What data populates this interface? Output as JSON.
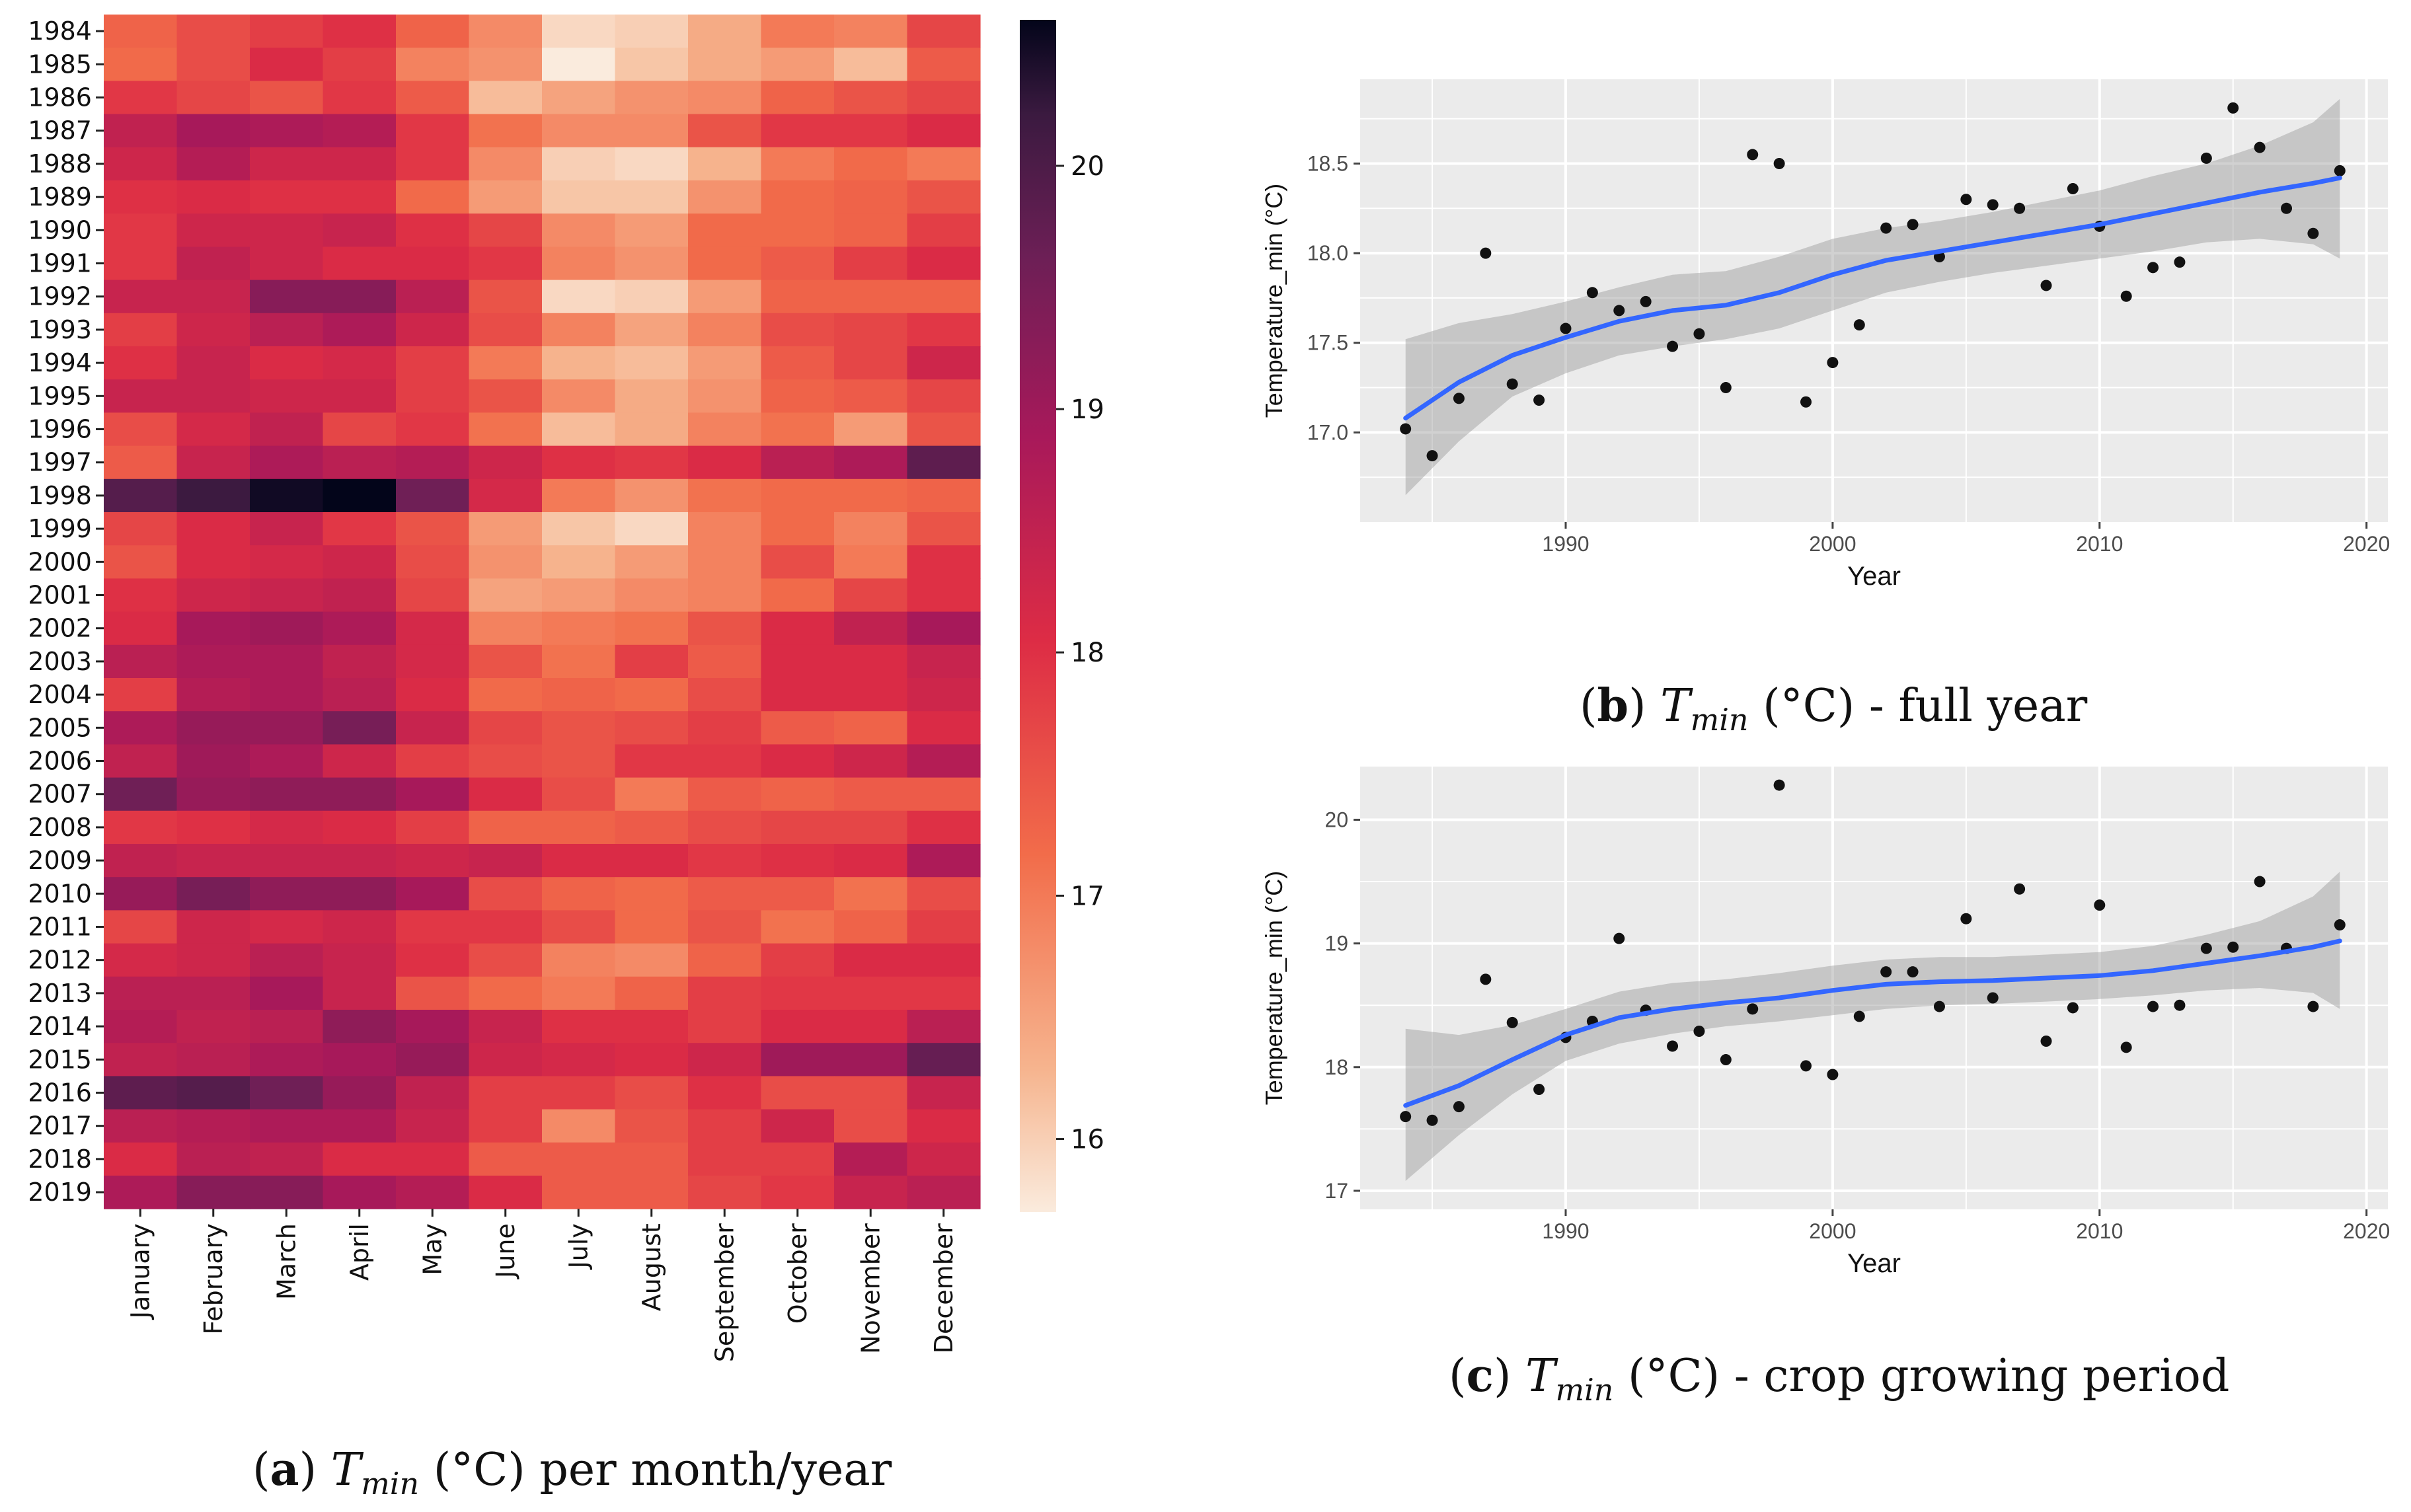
{
  "panels": {
    "a": {
      "caption": {
        "letter": "a",
        "symbol": "T",
        "subscript": "min",
        "rest": " (°C) per month/year"
      }
    },
    "b": {
      "caption": {
        "letter": "b",
        "symbol": "T",
        "subscript": "min",
        "rest": " (°C) - full year"
      }
    },
    "c": {
      "caption": {
        "letter": "c",
        "symbol": "T",
        "subscript": "min",
        "rest": " (°C) - crop growing period"
      }
    }
  },
  "colors": {
    "panel_bg": "#ebebeb",
    "grid": "#ffffff",
    "smooth_line": "#3366ff",
    "ribbon": "#bdbdbd",
    "point": "#111111"
  },
  "chart_data": [
    {
      "type": "heatmap",
      "title": "",
      "xlabel": "",
      "ylabel": "",
      "columns": [
        "January",
        "February",
        "March",
        "April",
        "May",
        "June",
        "July",
        "August",
        "September",
        "October",
        "November",
        "December"
      ],
      "rows": [
        "1984",
        "1985",
        "1986",
        "1987",
        "1988",
        "1989",
        "1990",
        "1991",
        "1992",
        "1993",
        "1994",
        "1995",
        "1996",
        "1997",
        "1998",
        "1999",
        "2000",
        "2001",
        "2002",
        "2003",
        "2004",
        "2005",
        "2006",
        "2007",
        "2008",
        "2009",
        "2010",
        "2011",
        "2012",
        "2013",
        "2014",
        "2015",
        "2016",
        "2017",
        "2018",
        "2019"
      ],
      "values": [
        [
          17.3,
          17.6,
          17.8,
          18.0,
          17.3,
          16.8,
          15.9,
          16.0,
          16.4,
          17.0,
          16.9,
          17.7
        ],
        [
          17.2,
          17.6,
          18.1,
          17.8,
          16.9,
          16.7,
          15.7,
          16.1,
          16.4,
          16.6,
          16.2,
          17.4
        ],
        [
          17.9,
          17.7,
          17.5,
          17.9,
          17.4,
          16.2,
          16.5,
          16.7,
          16.8,
          17.3,
          17.5,
          17.7
        ],
        [
          18.5,
          18.9,
          18.8,
          18.7,
          17.9,
          17.1,
          16.8,
          16.8,
          17.5,
          17.9,
          17.9,
          18.1
        ],
        [
          18.3,
          18.7,
          18.3,
          18.3,
          17.9,
          16.8,
          16.0,
          15.9,
          16.3,
          17.0,
          17.2,
          17.0
        ],
        [
          18.0,
          18.1,
          18.0,
          18.0,
          17.2,
          16.6,
          16.1,
          16.1,
          16.7,
          17.2,
          17.3,
          17.5
        ],
        [
          17.9,
          18.3,
          18.3,
          18.4,
          18.0,
          17.7,
          16.8,
          16.6,
          17.2,
          17.2,
          17.3,
          17.8
        ],
        [
          17.9,
          18.5,
          18.3,
          18.1,
          18.1,
          17.9,
          16.9,
          16.7,
          17.2,
          17.4,
          17.8,
          18.1
        ],
        [
          18.4,
          18.4,
          19.3,
          19.3,
          18.6,
          17.5,
          15.9,
          16.0,
          16.6,
          17.3,
          17.3,
          17.3
        ],
        [
          17.8,
          18.3,
          18.6,
          18.8,
          18.3,
          17.6,
          16.9,
          16.5,
          16.9,
          17.6,
          17.7,
          17.9
        ],
        [
          18.0,
          18.4,
          18.1,
          18.2,
          17.8,
          17.0,
          16.3,
          16.2,
          16.6,
          17.4,
          17.7,
          18.3
        ],
        [
          18.4,
          18.4,
          18.3,
          18.3,
          17.8,
          17.5,
          16.8,
          16.4,
          16.7,
          17.3,
          17.4,
          17.7
        ],
        [
          17.6,
          18.2,
          18.5,
          17.7,
          17.9,
          17.1,
          16.2,
          16.4,
          16.9,
          17.1,
          16.6,
          17.5
        ],
        [
          17.4,
          18.4,
          18.8,
          18.6,
          18.7,
          18.3,
          18.0,
          17.9,
          18.1,
          18.6,
          18.8,
          19.8
        ],
        [
          19.9,
          20.2,
          20.5,
          20.6,
          19.6,
          18.2,
          17.0,
          16.7,
          17.1,
          17.2,
          17.2,
          17.3
        ],
        [
          17.7,
          18.1,
          18.4,
          17.9,
          17.5,
          16.6,
          16.1,
          15.9,
          16.9,
          17.2,
          16.9,
          17.5
        ],
        [
          17.5,
          18.1,
          18.2,
          18.3,
          17.6,
          16.7,
          16.3,
          16.6,
          16.9,
          17.6,
          17.0,
          18.0
        ],
        [
          18.0,
          18.3,
          18.4,
          18.5,
          17.7,
          16.5,
          16.6,
          16.8,
          16.9,
          17.2,
          17.7,
          18.0
        ],
        [
          18.1,
          18.9,
          19.0,
          18.8,
          18.2,
          16.9,
          17.0,
          17.1,
          17.5,
          18.1,
          18.5,
          18.9
        ],
        [
          18.6,
          18.8,
          18.8,
          18.5,
          18.2,
          17.5,
          17.1,
          17.8,
          17.4,
          18.1,
          18.1,
          18.4
        ],
        [
          17.8,
          18.7,
          18.8,
          18.6,
          18.1,
          17.2,
          17.3,
          17.2,
          17.6,
          18.1,
          18.1,
          18.3
        ],
        [
          18.8,
          19.1,
          19.1,
          19.5,
          18.4,
          17.7,
          17.5,
          17.6,
          17.8,
          17.4,
          17.3,
          18.1
        ],
        [
          18.5,
          19.0,
          18.8,
          18.3,
          17.8,
          17.6,
          17.5,
          17.9,
          17.9,
          18.1,
          18.3,
          18.7
        ],
        [
          19.6,
          19.1,
          19.2,
          19.2,
          18.9,
          18.1,
          17.6,
          17.0,
          17.4,
          17.3,
          17.4,
          17.4
        ],
        [
          17.9,
          18.0,
          18.2,
          18.1,
          17.8,
          17.3,
          17.3,
          17.4,
          17.6,
          17.7,
          17.7,
          18.0
        ],
        [
          18.5,
          18.4,
          18.4,
          18.4,
          18.3,
          18.4,
          18.1,
          18.1,
          17.9,
          18.0,
          18.1,
          18.8
        ],
        [
          19.1,
          19.5,
          19.2,
          19.2,
          18.9,
          17.6,
          17.3,
          17.2,
          17.4,
          17.4,
          17.1,
          17.6
        ],
        [
          17.7,
          18.3,
          18.2,
          18.3,
          17.9,
          17.9,
          17.6,
          17.2,
          17.5,
          17.1,
          17.3,
          17.8
        ],
        [
          18.2,
          18.3,
          18.6,
          18.4,
          18.0,
          17.6,
          16.9,
          16.8,
          17.3,
          17.8,
          18.1,
          18.1
        ],
        [
          18.6,
          18.6,
          18.9,
          18.4,
          17.5,
          17.2,
          17.0,
          17.3,
          17.8,
          17.9,
          17.9,
          17.9
        ],
        [
          18.7,
          18.5,
          18.6,
          19.2,
          18.9,
          18.4,
          18.0,
          18.0,
          17.8,
          18.1,
          18.1,
          18.6
        ],
        [
          18.5,
          18.6,
          18.8,
          18.9,
          19.1,
          18.3,
          18.2,
          18.1,
          18.3,
          19.0,
          19.0,
          19.7
        ],
        [
          19.8,
          19.9,
          19.6,
          19.1,
          18.5,
          17.8,
          17.8,
          17.6,
          18.0,
          17.6,
          17.6,
          18.4
        ],
        [
          18.6,
          18.7,
          18.8,
          18.8,
          18.4,
          17.8,
          16.8,
          17.5,
          17.8,
          18.3,
          17.6,
          18.1
        ],
        [
          18.1,
          18.6,
          18.5,
          18.1,
          18.1,
          17.4,
          17.4,
          17.4,
          17.8,
          17.8,
          18.7,
          18.3
        ],
        [
          18.8,
          19.3,
          19.3,
          18.9,
          18.7,
          18.1,
          17.4,
          17.4,
          17.7,
          17.9,
          18.4,
          18.6
        ]
      ],
      "colorbar": {
        "ticks": [
          16,
          17,
          18,
          19,
          20
        ],
        "range": [
          15.7,
          20.6
        ]
      }
    },
    {
      "type": "scatter",
      "title": "",
      "xlabel": "Year",
      "ylabel": "Temperature_min (°C)",
      "xlim": [
        1982.3,
        2020.8
      ],
      "ylim": [
        16.5,
        18.97
      ],
      "xticks": [
        1990,
        2000,
        2010,
        2020
      ],
      "yticks": [
        17.0,
        17.5,
        18.0,
        18.5
      ],
      "ytick_labels": [
        "17.0",
        "17.5",
        "18.0",
        "18.5"
      ],
      "grid": true,
      "x": [
        1984,
        1985,
        1986,
        1987,
        1988,
        1989,
        1990,
        1991,
        1992,
        1993,
        1994,
        1995,
        1996,
        1997,
        1998,
        1999,
        2000,
        2001,
        2002,
        2003,
        2004,
        2005,
        2006,
        2007,
        2008,
        2009,
        2010,
        2011,
        2012,
        2013,
        2014,
        2015,
        2016,
        2017,
        2018,
        2019
      ],
      "y": [
        17.02,
        16.87,
        17.19,
        18.0,
        17.27,
        17.18,
        17.58,
        17.78,
        17.68,
        17.73,
        17.48,
        17.55,
        17.25,
        18.55,
        18.5,
        17.17,
        17.39,
        17.6,
        18.14,
        18.16,
        17.98,
        18.3,
        18.27,
        18.25,
        17.82,
        18.36,
        18.15,
        17.76,
        17.92,
        17.95,
        18.53,
        18.81,
        18.59,
        18.25,
        18.11,
        18.46
      ],
      "smooth": {
        "x": [
          1984,
          1986,
          1988,
          1990,
          1992,
          1994,
          1996,
          1998,
          2000,
          2002,
          2004,
          2006,
          2008,
          2010,
          2012,
          2014,
          2016,
          2018,
          2019
        ],
        "y": [
          17.08,
          17.28,
          17.43,
          17.53,
          17.62,
          17.68,
          17.71,
          17.78,
          17.88,
          17.96,
          18.01,
          18.06,
          18.11,
          18.16,
          18.22,
          18.28,
          18.34,
          18.39,
          18.42
        ],
        "lower": [
          16.65,
          16.95,
          17.2,
          17.33,
          17.43,
          17.48,
          17.52,
          17.58,
          17.68,
          17.78,
          17.84,
          17.89,
          17.93,
          17.97,
          18.01,
          18.06,
          18.08,
          18.05,
          17.97
        ],
        "upper": [
          17.52,
          17.61,
          17.66,
          17.73,
          17.81,
          17.88,
          17.9,
          17.98,
          18.08,
          18.14,
          18.18,
          18.23,
          18.29,
          18.35,
          18.43,
          18.5,
          18.6,
          18.73,
          18.86
        ]
      }
    },
    {
      "type": "scatter",
      "title": "",
      "xlabel": "Year",
      "ylabel": "Temperature_min (°C)",
      "xlim": [
        1982.3,
        2020.8
      ],
      "ylim": [
        16.85,
        20.43
      ],
      "xticks": [
        1990,
        2000,
        2010,
        2020
      ],
      "yticks": [
        17,
        18,
        19,
        20
      ],
      "ytick_labels": [
        "17",
        "18",
        "19",
        "20"
      ],
      "grid": true,
      "x": [
        1984,
        1985,
        1986,
        1987,
        1988,
        1989,
        1990,
        1991,
        1992,
        1993,
        1994,
        1995,
        1996,
        1997,
        1998,
        1999,
        2000,
        2001,
        2002,
        2003,
        2004,
        2005,
        2006,
        2007,
        2008,
        2009,
        2010,
        2011,
        2012,
        2013,
        2014,
        2015,
        2016,
        2017,
        2018,
        2019
      ],
      "y": [
        17.6,
        17.57,
        17.68,
        18.71,
        18.36,
        17.82,
        18.24,
        18.37,
        19.04,
        18.46,
        18.17,
        18.29,
        18.06,
        18.47,
        20.28,
        18.01,
        17.94,
        18.41,
        18.77,
        18.77,
        18.49,
        19.2,
        18.56,
        19.44,
        18.21,
        18.48,
        19.31,
        18.16,
        18.49,
        18.5,
        18.96,
        18.97,
        19.5,
        18.96,
        18.49,
        19.15
      ],
      "smooth": {
        "x": [
          1984,
          1986,
          1988,
          1990,
          1992,
          1994,
          1996,
          1998,
          2000,
          2002,
          2004,
          2006,
          2008,
          2010,
          2012,
          2014,
          2016,
          2018,
          2019
        ],
        "y": [
          17.69,
          17.85,
          18.06,
          18.26,
          18.4,
          18.47,
          18.52,
          18.56,
          18.62,
          18.67,
          18.69,
          18.7,
          18.72,
          18.74,
          18.78,
          18.84,
          18.9,
          18.97,
          19.02
        ],
        "lower": [
          17.08,
          17.45,
          17.78,
          18.05,
          18.19,
          18.27,
          18.33,
          18.37,
          18.42,
          18.47,
          18.5,
          18.51,
          18.53,
          18.55,
          18.58,
          18.62,
          18.64,
          18.6,
          18.47
        ],
        "upper": [
          18.31,
          18.26,
          18.34,
          18.47,
          18.61,
          18.68,
          18.71,
          18.76,
          18.82,
          18.87,
          18.89,
          18.89,
          18.91,
          18.93,
          18.98,
          19.07,
          19.18,
          19.38,
          19.58
        ]
      }
    }
  ]
}
